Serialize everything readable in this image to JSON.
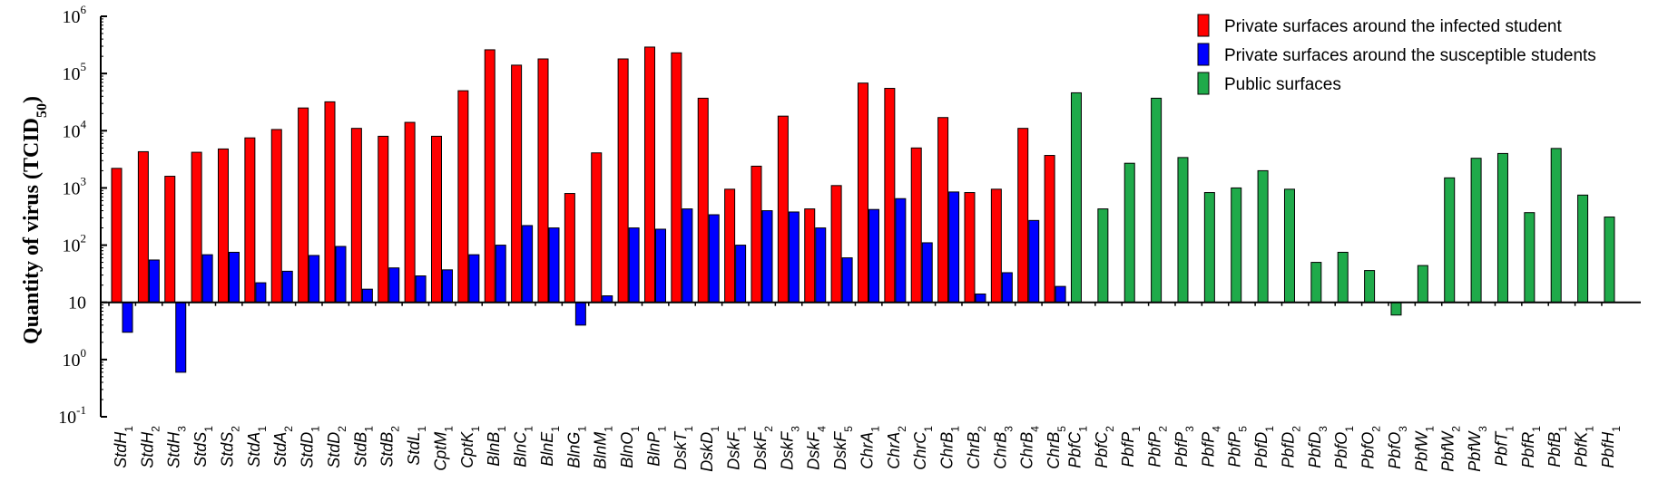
{
  "chart_data": {
    "type": "bar",
    "ylabel": "Quantity of virus (TCID50)",
    "ylabel_main": "Quantity of virus (TCID",
    "ylabel_sub": "50",
    "ylabel_close": ")",
    "yscale": "log",
    "baseline": 10,
    "ylim": [
      0.1,
      1000000
    ],
    "yticks": [
      {
        "base": "10",
        "exp": "6"
      },
      {
        "base": "10",
        "exp": "5"
      },
      {
        "base": "10",
        "exp": "4"
      },
      {
        "base": "10",
        "exp": "3"
      },
      {
        "base": "10",
        "exp": "2"
      },
      {
        "base": "10",
        "exp": ""
      },
      {
        "base": "10",
        "exp": "0"
      },
      {
        "base": "10",
        "exp": "-1"
      }
    ],
    "legend_position": "top-right",
    "grid": false,
    "legend": [
      {
        "label": "Private surfaces around the infected student",
        "color": "#ff0000"
      },
      {
        "label": "Private surfaces around the susceptible students",
        "color": "#0000ff"
      },
      {
        "label": "Public surfaces",
        "color": "#1faa4a"
      }
    ],
    "categories": [
      {
        "main": "StdH",
        "sub": "1",
        "values": [
          2200,
          3
        ]
      },
      {
        "main": "StdH",
        "sub": "2",
        "values": [
          4300,
          55
        ]
      },
      {
        "main": "StdH",
        "sub": "3",
        "values": [
          1600,
          0.6
        ]
      },
      {
        "main": "StdS",
        "sub": "1",
        "values": [
          4200,
          68
        ]
      },
      {
        "main": "StdS",
        "sub": "2",
        "values": [
          4800,
          75
        ]
      },
      {
        "main": "StdA",
        "sub": "1",
        "values": [
          7500,
          22
        ]
      },
      {
        "main": "StdA",
        "sub": "2",
        "values": [
          10500,
          35
        ]
      },
      {
        "main": "StdD",
        "sub": "1",
        "values": [
          25000,
          66
        ]
      },
      {
        "main": "StdD",
        "sub": "2",
        "values": [
          32000,
          95
        ]
      },
      {
        "main": "StdB",
        "sub": "1",
        "values": [
          11000,
          17
        ]
      },
      {
        "main": "StdB",
        "sub": "2",
        "values": [
          8000,
          40
        ]
      },
      {
        "main": "StdL",
        "sub": "1",
        "values": [
          14000,
          29
        ]
      },
      {
        "main": "CptM",
        "sub": "1",
        "values": [
          8000,
          37
        ]
      },
      {
        "main": "CptK",
        "sub": "1",
        "values": [
          50000,
          68
        ]
      },
      {
        "main": "BlnB",
        "sub": "1",
        "values": [
          260000,
          100
        ]
      },
      {
        "main": "BlnC",
        "sub": "1",
        "values": [
          140000,
          220
        ]
      },
      {
        "main": "BlnE",
        "sub": "1",
        "values": [
          180000,
          200
        ]
      },
      {
        "main": "BlnG",
        "sub": "1",
        "values": [
          800,
          4
        ]
      },
      {
        "main": "BlnM",
        "sub": "1",
        "values": [
          4100,
          13
        ]
      },
      {
        "main": "BlnO",
        "sub": "1",
        "values": [
          180000,
          200
        ]
      },
      {
        "main": "BlnP",
        "sub": "1",
        "values": [
          290000,
          190
        ]
      },
      {
        "main": "DskT",
        "sub": "1",
        "values": [
          230000,
          430
        ]
      },
      {
        "main": "DskD",
        "sub": "1",
        "values": [
          37000,
          340
        ]
      },
      {
        "main": "DskF",
        "sub": "1",
        "values": [
          950,
          100
        ]
      },
      {
        "main": "DskF",
        "sub": "2",
        "values": [
          2400,
          400
        ]
      },
      {
        "main": "DskF",
        "sub": "3",
        "values": [
          18000,
          380
        ]
      },
      {
        "main": "DskF",
        "sub": "4",
        "values": [
          430,
          200
        ]
      },
      {
        "main": "DskF",
        "sub": "5",
        "values": [
          1100,
          60
        ]
      },
      {
        "main": "ChrA",
        "sub": "1",
        "values": [
          68000,
          420
        ]
      },
      {
        "main": "ChrA",
        "sub": "2",
        "values": [
          55000,
          650
        ]
      },
      {
        "main": "ChrC",
        "sub": "1",
        "values": [
          5000,
          110
        ]
      },
      {
        "main": "ChrB",
        "sub": "1",
        "values": [
          17000,
          850
        ]
      },
      {
        "main": "ChrB",
        "sub": "2",
        "values": [
          830,
          14
        ]
      },
      {
        "main": "ChrB",
        "sub": "3",
        "values": [
          950,
          33
        ]
      },
      {
        "main": "ChrB",
        "sub": "4",
        "values": [
          11000,
          270
        ]
      },
      {
        "main": "ChrB",
        "sub": "5",
        "values": [
          3700,
          19
        ]
      },
      {
        "main": "PbfC",
        "sub": "1",
        "values": [
          46000
        ]
      },
      {
        "main": "PbfC",
        "sub": "2",
        "values": [
          430
        ]
      },
      {
        "main": "PbfP",
        "sub": "1",
        "values": [
          2700
        ]
      },
      {
        "main": "PbfP",
        "sub": "2",
        "values": [
          37000
        ]
      },
      {
        "main": "PbfP",
        "sub": "3",
        "values": [
          3400
        ]
      },
      {
        "main": "PbfP",
        "sub": "4",
        "values": [
          830
        ]
      },
      {
        "main": "PbfP",
        "sub": "5",
        "values": [
          1000
        ]
      },
      {
        "main": "PbfD",
        "sub": "1",
        "values": [
          2000
        ]
      },
      {
        "main": "PbfD",
        "sub": "2",
        "values": [
          950
        ]
      },
      {
        "main": "PbfD",
        "sub": "3",
        "values": [
          50
        ]
      },
      {
        "main": "PbfO",
        "sub": "1",
        "values": [
          75
        ]
      },
      {
        "main": "PbfO",
        "sub": "2",
        "values": [
          36
        ]
      },
      {
        "main": "PbfO",
        "sub": "3",
        "values": [
          6
        ]
      },
      {
        "main": "PbfW",
        "sub": "1",
        "values": [
          44
        ]
      },
      {
        "main": "PbfW",
        "sub": "2",
        "values": [
          1500
        ]
      },
      {
        "main": "PbfW",
        "sub": "3",
        "values": [
          3300
        ]
      },
      {
        "main": "PbfT",
        "sub": "1",
        "values": [
          4000
        ]
      },
      {
        "main": "PbfR",
        "sub": "1",
        "values": [
          370
        ]
      },
      {
        "main": "PbfB",
        "sub": "1",
        "values": [
          4900
        ]
      },
      {
        "main": "PbfK",
        "sub": "1",
        "values": [
          750
        ]
      },
      {
        "main": "PbfH",
        "sub": "1",
        "values": [
          310
        ]
      }
    ]
  }
}
